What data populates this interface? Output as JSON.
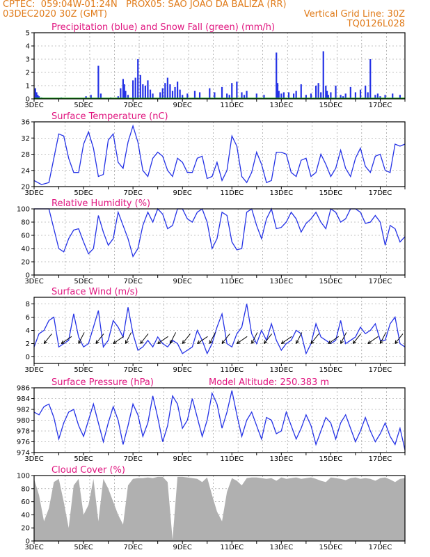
{
  "header": {
    "line1": "CPTEC:  059:04W-01:24N   PROX05: SAO JOAO DA BALIZA (RR)",
    "line2_left": "03DEC2020 30Z (GMT)",
    "line2_right": "Vertical Grid Line: 30Z",
    "line3_right": "TQ0126L028"
  },
  "colors": {
    "header": "#e07b1a",
    "title": "#e0157f",
    "line": "#2432e6",
    "precip": "#2432e6",
    "snow": "#1aa31a",
    "cloud": "#b0b0b0",
    "grid": "#888888"
  },
  "x_labels": [
    "3DEC",
    "5DEC",
    "7DEC",
    "9DEC",
    "11DEC",
    "13DEC",
    "15DEC",
    "17DEC"
  ],
  "chart_data": [
    {
      "type": "bar",
      "title": "Precipitation (blue) and Snow Fall (green) (mm/h)",
      "ylim": [
        0,
        5
      ],
      "yticks": [
        0,
        1,
        2,
        3,
        4,
        5
      ],
      "x": [
        3.05,
        3.1,
        3.15,
        3.2,
        3.3,
        4.1,
        5.1,
        5.3,
        5.6,
        5.7,
        6.1,
        6.4,
        6.5,
        6.6,
        6.65,
        6.7,
        6.8,
        7.0,
        7.1,
        7.2,
        7.3,
        7.4,
        7.5,
        7.6,
        7.7,
        7.8,
        8.1,
        8.2,
        8.3,
        8.4,
        8.5,
        8.6,
        8.7,
        8.8,
        8.9,
        9.0,
        9.2,
        9.5,
        9.7,
        10.1,
        10.3,
        10.6,
        10.8,
        10.9,
        11.0,
        11.2,
        11.4,
        11.5,
        11.6,
        12.0,
        12.3,
        12.8,
        12.85,
        12.9,
        13.0,
        13.1,
        13.3,
        13.5,
        13.6,
        13.8,
        14.0,
        14.2,
        14.4,
        14.5,
        14.6,
        14.7,
        14.8,
        14.85,
        14.9,
        15.0,
        15.2,
        15.4,
        15.5,
        15.6,
        15.8,
        16.0,
        16.2,
        16.4,
        16.5,
        16.6,
        16.8,
        16.9,
        17.0,
        17.2,
        17.5,
        17.8
      ],
      "values": [
        0.8,
        0.5,
        0.3,
        0.2,
        0.1,
        0.1,
        0.2,
        0.3,
        2.5,
        0.4,
        0.1,
        0.2,
        0.8,
        1.5,
        1.1,
        0.6,
        0.3,
        1.4,
        1.6,
        3.0,
        1.8,
        1.1,
        1.0,
        1.4,
        0.7,
        0.4,
        0.5,
        0.8,
        1.2,
        1.6,
        1.1,
        0.6,
        0.9,
        1.3,
        0.7,
        0.3,
        0.4,
        0.6,
        0.5,
        0.8,
        0.5,
        0.9,
        0.4,
        0.3,
        1.2,
        1.3,
        0.5,
        0.3,
        0.6,
        0.4,
        0.3,
        3.5,
        1.2,
        0.6,
        0.4,
        0.5,
        0.5,
        0.4,
        0.6,
        1.1,
        0.3,
        0.4,
        1.0,
        1.2,
        0.5,
        3.6,
        1.0,
        0.6,
        0.3,
        0.5,
        1.0,
        0.3,
        0.2,
        0.4,
        0.9,
        0.5,
        0.7,
        1.0,
        0.5,
        3.0,
        0.3,
        0.4,
        0.2,
        0.3,
        0.4,
        0.3
      ],
      "snow": 0
    },
    {
      "type": "line",
      "title": "Surface Temperature (nC)",
      "ylim": [
        20,
        36
      ],
      "yticks": [
        20,
        24,
        28,
        32,
        36
      ],
      "x": [
        3.0,
        3.3,
        3.6,
        3.8,
        4.0,
        4.2,
        4.4,
        4.6,
        4.8,
        5.0,
        5.2,
        5.4,
        5.6,
        5.8,
        6.0,
        6.2,
        6.4,
        6.6,
        6.8,
        7.0,
        7.2,
        7.4,
        7.6,
        7.8,
        8.0,
        8.2,
        8.4,
        8.6,
        8.8,
        9.0,
        9.2,
        9.4,
        9.6,
        9.8,
        10.0,
        10.2,
        10.4,
        10.6,
        10.8,
        11.0,
        11.2,
        11.4,
        11.6,
        11.8,
        12.0,
        12.2,
        12.4,
        12.6,
        12.8,
        13.0,
        13.2,
        13.4,
        13.6,
        13.8,
        14.0,
        14.2,
        14.4,
        14.6,
        14.8,
        15.0,
        15.2,
        15.4,
        15.6,
        15.8,
        16.0,
        16.2,
        16.4,
        16.6,
        16.8,
        17.0,
        17.2,
        17.4,
        17.6,
        17.8,
        18.0
      ],
      "values": [
        21.5,
        20.5,
        21.0,
        27.0,
        33.0,
        32.5,
        27.0,
        23.5,
        23.5,
        30.5,
        33.5,
        29.5,
        22.5,
        23.0,
        31.5,
        33.0,
        26.0,
        24.5,
        31.0,
        35.0,
        31.0,
        24.0,
        22.5,
        27.0,
        28.5,
        27.5,
        24.0,
        22.5,
        27.0,
        26.0,
        23.5,
        23.5,
        27.0,
        27.5,
        22.0,
        22.5,
        26.0,
        21.5,
        24.0,
        32.5,
        30.0,
        22.5,
        21.0,
        23.5,
        28.5,
        25.5,
        21.0,
        21.5,
        28.5,
        28.5,
        28.0,
        23.5,
        22.5,
        26.5,
        27.0,
        22.5,
        23.5,
        28.0,
        25.5,
        22.5,
        24.5,
        29.0,
        24.5,
        22.5,
        27.0,
        29.5,
        25.0,
        23.5,
        27.5,
        28.0,
        24.0,
        23.5,
        30.5,
        30.0,
        30.5
      ]
    },
    {
      "type": "line",
      "title": "Relative Humidity (%)",
      "ylim": [
        0,
        100
      ],
      "yticks": [
        0,
        20,
        40,
        60,
        80,
        100
      ],
      "x": [
        3.0,
        3.3,
        3.6,
        3.8,
        4.0,
        4.2,
        4.4,
        4.6,
        4.8,
        5.0,
        5.2,
        5.4,
        5.6,
        5.8,
        6.0,
        6.2,
        6.4,
        6.6,
        6.8,
        7.0,
        7.2,
        7.4,
        7.6,
        7.8,
        8.0,
        8.2,
        8.4,
        8.6,
        8.8,
        9.0,
        9.2,
        9.4,
        9.6,
        9.8,
        10.0,
        10.2,
        10.4,
        10.6,
        10.8,
        11.0,
        11.2,
        11.4,
        11.6,
        11.8,
        12.0,
        12.2,
        12.4,
        12.6,
        12.8,
        13.0,
        13.2,
        13.4,
        13.6,
        13.8,
        14.0,
        14.2,
        14.4,
        14.6,
        14.8,
        15.0,
        15.2,
        15.4,
        15.6,
        15.8,
        16.0,
        16.2,
        16.4,
        16.6,
        16.8,
        17.0,
        17.2,
        17.4,
        17.6,
        17.8,
        18.0
      ],
      "values": [
        100,
        100,
        100,
        70,
        40,
        35,
        55,
        68,
        70,
        50,
        32,
        40,
        90,
        65,
        45,
        55,
        95,
        75,
        55,
        28,
        40,
        75,
        95,
        80,
        100,
        92,
        70,
        75,
        100,
        100,
        85,
        80,
        95,
        100,
        80,
        40,
        55,
        95,
        90,
        50,
        38,
        40,
        95,
        100,
        75,
        55,
        85,
        100,
        70,
        72,
        80,
        95,
        85,
        65,
        78,
        85,
        95,
        80,
        70,
        100,
        95,
        80,
        85,
        100,
        100,
        95,
        78,
        80,
        90,
        80,
        45,
        75,
        70,
        50,
        58
      ]
    },
    {
      "type": "line",
      "title": "Surface Wind (m/s)",
      "ylim": [
        -1,
        9
      ],
      "yticks": [
        0,
        2,
        4,
        6,
        8
      ],
      "x": [
        3.0,
        3.2,
        3.4,
        3.6,
        3.8,
        4.0,
        4.2,
        4.4,
        4.6,
        4.8,
        5.0,
        5.2,
        5.4,
        5.6,
        5.8,
        6.0,
        6.2,
        6.4,
        6.6,
        6.8,
        7.0,
        7.2,
        7.4,
        7.6,
        7.8,
        8.0,
        8.2,
        8.4,
        8.6,
        8.8,
        9.0,
        9.2,
        9.4,
        9.6,
        9.8,
        10.0,
        10.2,
        10.4,
        10.6,
        10.8,
        11.0,
        11.2,
        11.4,
        11.6,
        11.8,
        12.0,
        12.2,
        12.4,
        12.6,
        12.8,
        13.0,
        13.2,
        13.4,
        13.6,
        13.8,
        14.0,
        14.2,
        14.4,
        14.6,
        14.8,
        15.0,
        15.2,
        15.4,
        15.6,
        15.8,
        16.0,
        16.2,
        16.4,
        16.6,
        16.8,
        17.0,
        17.2,
        17.4,
        17.6,
        17.8,
        18.0
      ],
      "values": [
        1.5,
        3.5,
        4.0,
        5.5,
        6.0,
        1.5,
        2.0,
        2.5,
        6.5,
        3.0,
        1.5,
        2.0,
        4.5,
        7.0,
        1.5,
        2.5,
        5.5,
        4.5,
        3.0,
        7.5,
        3.5,
        1.0,
        1.5,
        2.5,
        1.5,
        3.0,
        2.0,
        1.5,
        2.5,
        2.0,
        0.5,
        1.0,
        1.5,
        4.0,
        2.5,
        0.5,
        2.0,
        4.5,
        6.5,
        2.0,
        1.5,
        3.5,
        4.5,
        8.0,
        3.5,
        2.0,
        4.0,
        2.5,
        5.0,
        2.5,
        1.0,
        2.0,
        2.5,
        4.0,
        3.5,
        0.5,
        2.0,
        5.0,
        3.0,
        2.5,
        2.0,
        2.5,
        5.5,
        2.0,
        2.5,
        3.0,
        4.5,
        3.5,
        4.0,
        5.0,
        2.5,
        2.5,
        5.0,
        6.0,
        2.0,
        1.5
      ],
      "wind_vectors_x": [
        3.4,
        4.1,
        4.8,
        5.5,
        6.2,
        6.7,
        7.3,
        8.0,
        8.5,
        9.0,
        9.6,
        10.1,
        10.6,
        11.2,
        11.8,
        12.3,
        13.0,
        13.6,
        14.2,
        14.9,
        15.4,
        15.9,
        16.5,
        17.0,
        17.6
      ]
    },
    {
      "type": "line",
      "title": "Surface Pressure (hPa)",
      "annotation": "Model Altitude: 250.383 m",
      "ylim": [
        974,
        986
      ],
      "yticks": [
        974,
        976,
        978,
        980,
        982,
        984,
        986
      ],
      "x": [
        3.0,
        3.2,
        3.4,
        3.6,
        3.8,
        4.0,
        4.2,
        4.4,
        4.6,
        4.8,
        5.0,
        5.2,
        5.4,
        5.6,
        5.8,
        6.0,
        6.2,
        6.4,
        6.6,
        6.8,
        7.0,
        7.2,
        7.4,
        7.6,
        7.8,
        8.0,
        8.2,
        8.4,
        8.6,
        8.8,
        9.0,
        9.2,
        9.4,
        9.6,
        9.8,
        10.0,
        10.2,
        10.4,
        10.6,
        10.8,
        11.0,
        11.2,
        11.4,
        11.6,
        11.8,
        12.0,
        12.2,
        12.4,
        12.6,
        12.8,
        13.0,
        13.2,
        13.4,
        13.6,
        13.8,
        14.0,
        14.2,
        14.4,
        14.6,
        14.8,
        15.0,
        15.2,
        15.4,
        15.6,
        15.8,
        16.0,
        16.2,
        16.4,
        16.6,
        16.8,
        17.0,
        17.2,
        17.4,
        17.6,
        17.8,
        18.0
      ],
      "values": [
        981.5,
        981.0,
        982.5,
        983.0,
        980.5,
        976.5,
        979.5,
        981.5,
        982.0,
        979.0,
        977.0,
        980.0,
        983.0,
        979.5,
        976.0,
        979.5,
        982.5,
        980.0,
        975.5,
        979.0,
        983.0,
        981.0,
        977.0,
        979.5,
        984.5,
        980.5,
        976.0,
        979.0,
        984.5,
        983.0,
        978.5,
        980.0,
        984.0,
        980.5,
        977.0,
        980.0,
        985.0,
        983.0,
        978.5,
        981.5,
        985.5,
        981.0,
        977.0,
        980.0,
        981.5,
        979.0,
        976.5,
        980.5,
        980.0,
        977.5,
        978.0,
        981.5,
        979.0,
        976.5,
        978.5,
        981.0,
        979.0,
        975.5,
        978.0,
        980.5,
        979.5,
        976.5,
        979.5,
        981.0,
        978.5,
        976.0,
        978.0,
        980.5,
        978.0,
        976.0,
        977.5,
        979.5,
        977.0,
        975.5,
        978.5,
        974.5
      ]
    },
    {
      "type": "area",
      "title": "Cloud Cover (%)",
      "ylim": [
        0,
        100
      ],
      "yticks": [
        0,
        20,
        40,
        60,
        80,
        100
      ],
      "x": [
        3.0,
        3.2,
        3.4,
        3.6,
        3.8,
        4.0,
        4.2,
        4.4,
        4.6,
        4.8,
        5.0,
        5.2,
        5.4,
        5.6,
        5.8,
        6.0,
        6.2,
        6.4,
        6.6,
        6.8,
        7.0,
        7.2,
        7.4,
        7.6,
        7.8,
        8.0,
        8.2,
        8.4,
        8.6,
        8.8,
        9.0,
        9.2,
        9.4,
        9.6,
        9.8,
        10.0,
        10.2,
        10.4,
        10.6,
        10.8,
        11.0,
        11.2,
        11.4,
        11.6,
        11.8,
        12.0,
        12.2,
        12.4,
        12.6,
        12.8,
        13.0,
        13.2,
        13.4,
        13.6,
        13.8,
        14.0,
        14.2,
        14.4,
        14.6,
        14.8,
        15.0,
        15.2,
        15.4,
        15.6,
        15.8,
        16.0,
        16.2,
        16.4,
        16.6,
        16.8,
        17.0,
        17.2,
        17.4,
        17.6,
        17.8,
        18.0
      ],
      "values": [
        95,
        70,
        30,
        50,
        90,
        95,
        60,
        20,
        85,
        95,
        40,
        55,
        95,
        30,
        95,
        80,
        60,
        40,
        25,
        85,
        95,
        96,
        96,
        97,
        96,
        98,
        98,
        90,
        2,
        98,
        98,
        97,
        96,
        95,
        90,
        97,
        70,
        45,
        30,
        75,
        96,
        92,
        85,
        96,
        97,
        97,
        96,
        95,
        96,
        92,
        97,
        95,
        96,
        97,
        95,
        96,
        97,
        95,
        92,
        90,
        97,
        96,
        95,
        93,
        96,
        97,
        95,
        96,
        95,
        92,
        96,
        97,
        94,
        90,
        95,
        96
      ]
    }
  ]
}
